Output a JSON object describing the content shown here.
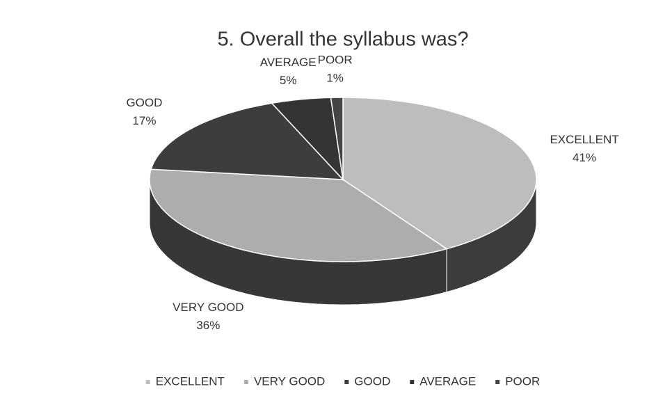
{
  "chart_data": {
    "type": "pie3d",
    "title": "5. Overall the syllabus was?",
    "categories": [
      "EXCELLENT",
      "VERY GOOD",
      "GOOD",
      "AVERAGE",
      "POOR"
    ],
    "values": [
      41,
      36,
      17,
      5,
      1
    ],
    "value_labels": [
      "41%",
      "36%",
      "17%",
      "5%",
      "1%"
    ],
    "colors": [
      "#bdbdbd",
      "#adadad",
      "#3d3d3d",
      "#343434",
      "#454545"
    ],
    "legend": "bottom"
  }
}
